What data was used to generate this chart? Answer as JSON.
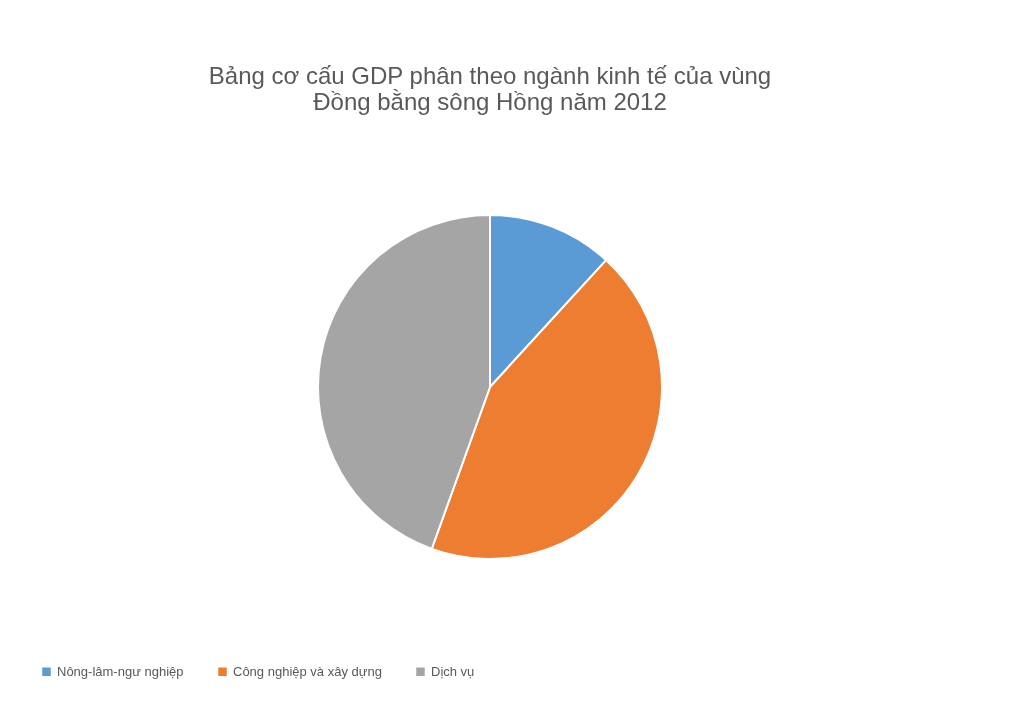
{
  "chart_data": {
    "type": "pie",
    "title": "Bảng cơ cấu GDP phân theo ngành kinh tế của vùng\nĐồng bằng sông Hồng năm 2012",
    "categories": [
      "Nông-lâm-ngư nghiệp",
      "Công nghiệp và xây dựng",
      "Dịch vụ"
    ],
    "values": [
      11.8,
      43.7,
      44.5
    ],
    "colors": [
      "#5b9bd5",
      "#ed7d31",
      "#a5a5a5"
    ],
    "legend": "bottom"
  }
}
